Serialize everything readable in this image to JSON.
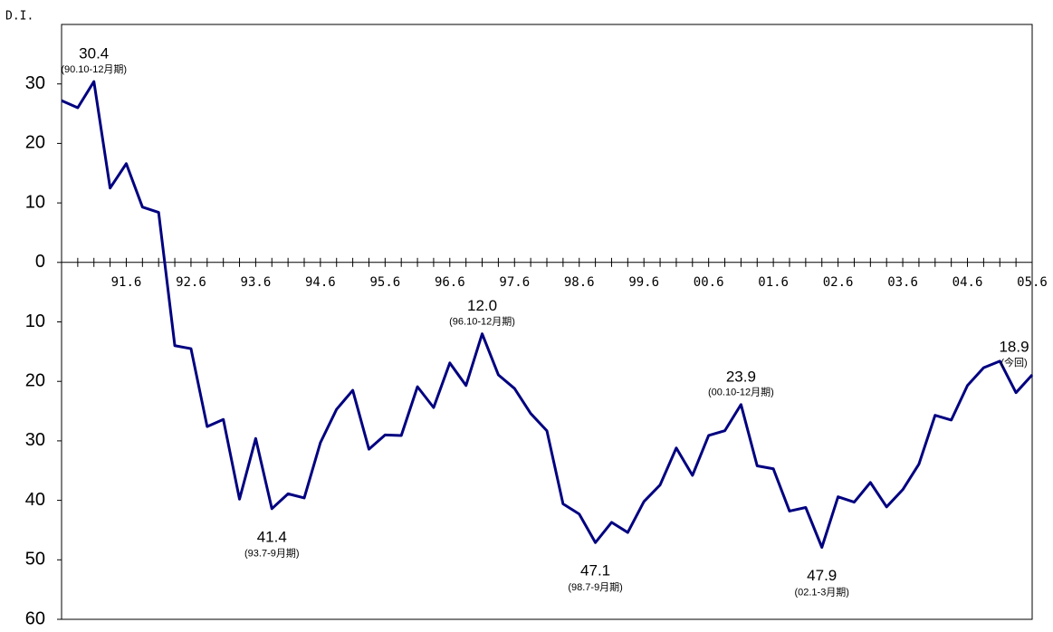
{
  "chart_data": {
    "type": "line",
    "y_axis_label": "D.I.",
    "categories": [
      null,
      null,
      null,
      null,
      "91.6",
      null,
      null,
      null,
      "92.6",
      null,
      null,
      null,
      "93.6",
      null,
      null,
      null,
      "94.6",
      null,
      null,
      null,
      "95.6",
      null,
      null,
      null,
      "96.6",
      null,
      null,
      null,
      "97.6",
      null,
      null,
      null,
      "98.6",
      null,
      null,
      null,
      "99.6",
      null,
      null,
      null,
      "00.6",
      null,
      null,
      null,
      "01.6",
      null,
      null,
      null,
      "02.6",
      null,
      null,
      null,
      "03.6",
      null,
      null,
      null,
      "04.6",
      null,
      null,
      null,
      "05.6"
    ],
    "series": [
      {
        "color": "#000080",
        "values": [
          27.2,
          26.0,
          30.4,
          12.5,
          16.6,
          9.3,
          8.4,
          -14.0,
          -14.5,
          -27.6,
          -26.4,
          -39.8,
          -29.6,
          -41.4,
          -38.9,
          -39.6,
          -30.3,
          -24.7,
          -21.5,
          -31.4,
          -29.0,
          -29.1,
          -20.9,
          -24.4,
          -16.9,
          -20.7,
          -12.0,
          -18.9,
          -21.2,
          -25.4,
          -28.3,
          -40.6,
          -42.3,
          -47.1,
          -43.7,
          -45.4,
          -40.2,
          -37.4,
          -31.2,
          -35.8,
          -29.1,
          -28.3,
          -23.9,
          -34.2,
          -34.7,
          -41.8,
          -41.2,
          -47.9,
          -39.4,
          -40.3,
          -37.0,
          -41.1,
          -38.2,
          -33.9,
          -25.7,
          -26.5,
          -20.7,
          -17.7,
          -16.6,
          -21.9,
          -18.9
        ],
        "value_labels": [
          null,
          null,
          "30.4",
          null,
          null,
          null,
          null,
          null,
          null,
          null,
          null,
          null,
          null,
          "41.4",
          null,
          null,
          null,
          null,
          null,
          null,
          null,
          null,
          null,
          null,
          null,
          null,
          "12.0",
          null,
          null,
          null,
          null,
          null,
          null,
          "47.1",
          null,
          null,
          null,
          null,
          null,
          null,
          null,
          null,
          "23.9",
          null,
          null,
          null,
          null,
          "47.9",
          null,
          null,
          null,
          null,
          null,
          null,
          null,
          null,
          null,
          null,
          null,
          null,
          "18.9"
        ],
        "value_notes": [
          null,
          null,
          "(90.10-12月期)",
          null,
          null,
          null,
          null,
          null,
          null,
          null,
          null,
          null,
          null,
          "(93.7-9月期)",
          null,
          null,
          null,
          null,
          null,
          null,
          null,
          null,
          null,
          null,
          null,
          null,
          "(96.10-12月期)",
          null,
          null,
          null,
          null,
          null,
          null,
          "(98.7-9月期)",
          null,
          null,
          null,
          null,
          null,
          null,
          null,
          null,
          "(00.10-12月期)",
          null,
          null,
          null,
          null,
          "(02.1-3月期)",
          null,
          null,
          null,
          null,
          null,
          null,
          null,
          null,
          null,
          null,
          null,
          null,
          "(今回)"
        ]
      }
    ],
    "ylim": [
      -60,
      40
    ],
    "yticks": [
      30,
      20,
      10,
      0,
      {
        "value": -10,
        "label": "10"
      },
      {
        "value": -20,
        "label": "20"
      },
      {
        "value": -30,
        "label": "30"
      },
      {
        "value": -40,
        "label": "40"
      },
      {
        "value": -50,
        "label": "50"
      },
      {
        "value": -60,
        "label": "60"
      }
    ]
  }
}
